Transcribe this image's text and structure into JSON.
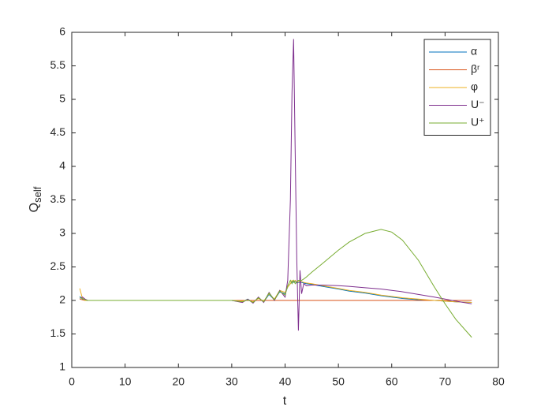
{
  "chart_data": {
    "type": "line",
    "xlabel": "t",
    "ylabel_base": "Q",
    "ylabel_subscript": "self",
    "x": [
      1.5,
      2,
      2.5,
      3,
      5,
      10,
      15,
      20,
      25,
      30,
      32,
      33,
      34,
      35,
      36,
      37,
      38,
      39,
      40,
      40.5,
      41,
      41.3,
      41.6,
      41.9,
      42.2,
      42.5,
      42.8,
      43.1,
      43.5,
      44,
      45,
      47,
      50,
      52,
      55,
      58,
      60,
      62,
      65,
      68,
      70,
      72,
      75
    ],
    "series": [
      {
        "name": "α",
        "color": "#0072BD",
        "values": [
          2.06,
          2.02,
          2.01,
          2.0,
          2.0,
          2.0,
          2.0,
          2.0,
          2.0,
          2.0,
          1.98,
          2.02,
          1.97,
          2.04,
          1.98,
          2.09,
          2.01,
          2.13,
          2.1,
          2.2,
          2.25,
          2.28,
          2.27,
          2.29,
          2.26,
          2.27,
          2.27,
          2.27,
          2.26,
          2.25,
          2.24,
          2.21,
          2.17,
          2.14,
          2.11,
          2.07,
          2.05,
          2.03,
          2.01,
          2.0,
          1.99,
          1.98,
          1.97
        ]
      },
      {
        "name": "βʳ",
        "color": "#D95319",
        "values": [
          2.02,
          2.01,
          2.0,
          2.0,
          2.0,
          2.0,
          2.0,
          2.0,
          2.0,
          2.0,
          2.0,
          2.0,
          2.0,
          2.0,
          2.0,
          2.0,
          2.0,
          2.0,
          2.0,
          2.0,
          2.0,
          2.0,
          2.0,
          2.0,
          2.0,
          2.0,
          2.0,
          2.0,
          2.0,
          2.0,
          2.0,
          2.0,
          2.0,
          2.0,
          2.0,
          2.0,
          2.0,
          2.0,
          2.0,
          2.0,
          2.0,
          2.0,
          2.0
        ]
      },
      {
        "name": "φ",
        "color": "#EDB120",
        "values": [
          2.18,
          2.03,
          2.0,
          2.0,
          2.0,
          2.0,
          2.0,
          2.0,
          2.0,
          2.0,
          1.99,
          2.01,
          1.98,
          2.03,
          1.99,
          2.1,
          2.02,
          2.15,
          2.12,
          2.2,
          2.25,
          2.3,
          2.28,
          2.3,
          2.27,
          2.28,
          2.28,
          2.28,
          2.27,
          2.26,
          2.25,
          2.22,
          2.18,
          2.15,
          2.12,
          2.08,
          2.06,
          2.04,
          2.02,
          2.0,
          1.99,
          1.98,
          1.97
        ]
      },
      {
        "name": "U⁻",
        "color": "#7E2F8E",
        "values": [
          2.03,
          2.05,
          2.02,
          2.0,
          2.0,
          2.0,
          2.0,
          2.0,
          2.0,
          2.0,
          1.97,
          2.02,
          1.96,
          2.05,
          1.97,
          2.12,
          2.0,
          2.15,
          2.05,
          2.3,
          3.5,
          5.1,
          5.9,
          4.2,
          2.6,
          1.55,
          2.45,
          2.1,
          2.25,
          2.22,
          2.23,
          2.23,
          2.22,
          2.21,
          2.19,
          2.17,
          2.15,
          2.13,
          2.09,
          2.05,
          2.02,
          1.99,
          1.95
        ]
      },
      {
        "name": "U⁺",
        "color": "#77AC30",
        "values": [
          2.04,
          2.03,
          2.01,
          2.0,
          2.0,
          2.0,
          2.0,
          2.0,
          2.0,
          2.0,
          1.98,
          2.01,
          1.97,
          2.04,
          1.98,
          2.11,
          2.01,
          2.14,
          2.08,
          2.22,
          2.3,
          2.25,
          2.3,
          2.25,
          2.28,
          2.3,
          2.3,
          2.3,
          2.32,
          2.35,
          2.42,
          2.55,
          2.75,
          2.87,
          3.0,
          3.06,
          3.02,
          2.9,
          2.6,
          2.2,
          1.95,
          1.72,
          1.45
        ]
      }
    ],
    "xlim": [
      0,
      80
    ],
    "xticks": [
      0,
      10,
      20,
      30,
      40,
      50,
      60,
      70,
      80
    ],
    "ylim": [
      1,
      6
    ],
    "yticks": [
      1,
      1.5,
      2,
      2.5,
      3,
      3.5,
      4,
      4.5,
      5,
      5.5,
      6
    ],
    "legend": "upper-right"
  }
}
